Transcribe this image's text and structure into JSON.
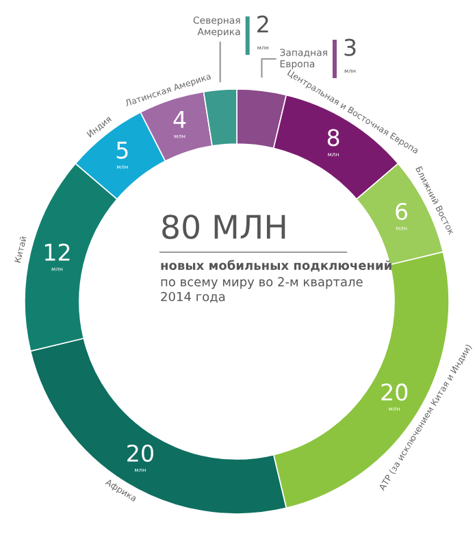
{
  "chart_data": {
    "type": "donut",
    "title": "80 МЛН",
    "subtitle": "новых мобильных подключений",
    "annotations": [
      "по всему миру во 2-м квартале 2014 года"
    ],
    "categories": [
      "Западная Европа",
      "Центральная и Восточная Европа",
      "Ближний Восток",
      "АТР (за исключением Китая и Индии)",
      "Африка",
      "Китай",
      "Индия",
      "Латинская Америка",
      "Северная Америка"
    ],
    "values": [
      3,
      8,
      6,
      20,
      20,
      12,
      5,
      4,
      2
    ],
    "colors": [
      "#8b4a8a",
      "#7a1a6e",
      "#9ccc5a",
      "#8cc43f",
      "#0e6e60",
      "#13806f",
      "#14aad6",
      "#a06aa5",
      "#3a9a8e"
    ],
    "value_labels": [
      "3\nмлн",
      "8\nмлн",
      "6\nмлн",
      "20\nмлн",
      "20\nмлн",
      "12\nмлн",
      "5\nмлн",
      "4\nмлн",
      "2\nмлн"
    ],
    "legend": false
  }
}
